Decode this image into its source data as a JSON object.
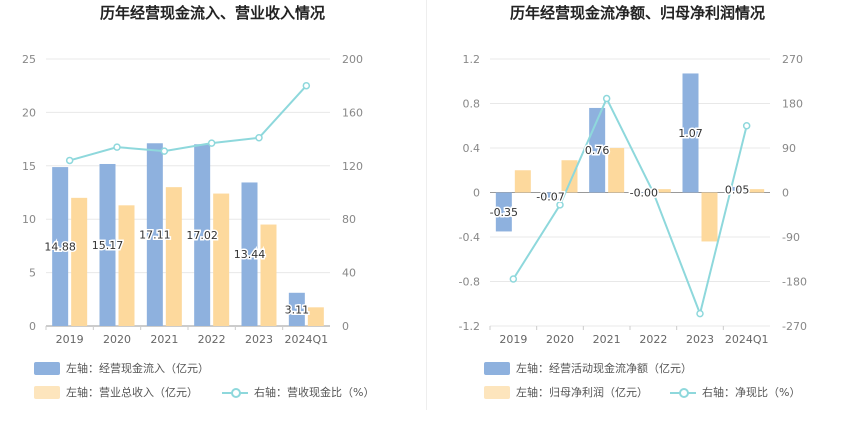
{
  "titles": {
    "left": "历年经营现金流入、营业收入情况",
    "right": "历年经营现金流净额、归母净利润情况"
  },
  "colors": {
    "blue": "#8eb1de",
    "orange": "#fdd99d",
    "teal": "#8ed8dc",
    "axis": "#888888",
    "grid": "#e8e8e8"
  },
  "legend": {
    "left": [
      {
        "label": "左轴：经营现金流入（亿元）",
        "type": "bar",
        "color": "#8eb1de"
      },
      {
        "label": "左轴：营业总收入（亿元）",
        "type": "bar",
        "color": "#fdd99d"
      },
      {
        "label": "右轴：营收现金比（%）",
        "type": "line",
        "color": "#8ed8dc"
      }
    ],
    "right": [
      {
        "label": "左轴：经营活动现金流净额（亿元）",
        "type": "bar",
        "color": "#8eb1de"
      },
      {
        "label": "左轴：归母净利润（亿元）",
        "type": "bar",
        "color": "#fdd99d"
      },
      {
        "label": "右轴：净现比（%）",
        "type": "line",
        "color": "#8ed8dc"
      }
    ]
  },
  "chart_data": [
    {
      "type": "bar",
      "title": "历年经营现金流入、营业收入情况",
      "categories": [
        "2019",
        "2020",
        "2021",
        "2022",
        "2023",
        "2024Q1"
      ],
      "ylim_left": [
        0,
        25
      ],
      "left_ticks": [
        "0",
        "5",
        "10",
        "15",
        "20",
        "25"
      ],
      "ylim_right": [
        0,
        200
      ],
      "right_ticks": [
        "0",
        "40",
        "80",
        "120",
        "160",
        "200"
      ],
      "series": [
        {
          "name": "左轴：经营现金流入（亿元）",
          "axis": "left",
          "kind": "bar",
          "color": "#8eb1de",
          "values": [
            14.88,
            15.17,
            17.11,
            17.02,
            13.44,
            3.11
          ],
          "labels": [
            "14.88",
            "15.17",
            "17.11",
            "17.02",
            "13.44",
            "3.11"
          ]
        },
        {
          "name": "左轴：营业总收入（亿元）",
          "axis": "left",
          "kind": "bar",
          "color": "#fdd99d",
          "values": [
            12.0,
            11.3,
            13.0,
            12.4,
            9.5,
            1.75
          ]
        },
        {
          "name": "右轴：营收现金比（%）",
          "axis": "right",
          "kind": "line",
          "color": "#8ed8dc",
          "values": [
            124,
            134,
            131,
            137,
            141,
            180
          ]
        }
      ]
    },
    {
      "type": "bar",
      "title": "历年经营现金流净额、归母净利润情况",
      "categories": [
        "2019",
        "2020",
        "2021",
        "2022",
        "2023",
        "2024Q1"
      ],
      "ylim_left": [
        -1.2,
        1.2
      ],
      "left_ticks": [
        "-1.2",
        "-0.8",
        "-0.4",
        "0",
        "0.4",
        "0.8",
        "1.2"
      ],
      "ylim_right": [
        -270,
        270
      ],
      "right_ticks": [
        "-270",
        "-180",
        "-90",
        "0",
        "90",
        "180",
        "270"
      ],
      "series": [
        {
          "name": "左轴：经营活动现金流净额（亿元）",
          "axis": "left",
          "kind": "bar",
          "color": "#8eb1de",
          "values": [
            -0.35,
            -0.07,
            0.76,
            -0.0,
            1.07,
            0.05
          ],
          "labels": [
            "-0.35",
            "-0.07",
            "0.76",
            "-0.00",
            "1.07",
            "0.05"
          ]
        },
        {
          "name": "左轴：归母净利润（亿元）",
          "axis": "left",
          "kind": "bar",
          "color": "#fdd99d",
          "values": [
            0.2,
            0.29,
            0.4,
            0.03,
            -0.44,
            0.03
          ]
        },
        {
          "name": "右轴：净现比（%）",
          "axis": "right",
          "kind": "line",
          "color": "#8ed8dc",
          "values": [
            -175,
            -25,
            190,
            0,
            -245,
            135
          ]
        }
      ]
    }
  ]
}
